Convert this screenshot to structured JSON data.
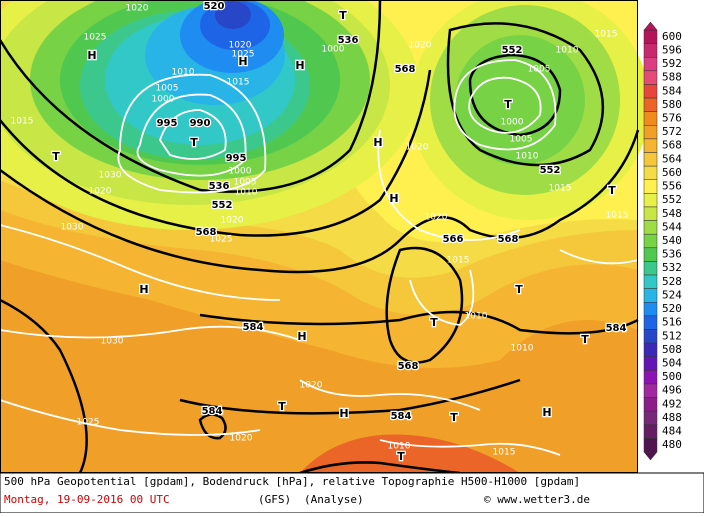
{
  "caption": {
    "line1": "500 hPa Geopotential [gpdam], Bodendruck [hPa], relative Topographie H500-H1000 [gpdam]",
    "date": "Montag, 19-09-2016  00 UTC",
    "model": "(GFS)",
    "run": "(Analyse)",
    "source": "© www.wetter3.de"
  },
  "legend": [
    {
      "value": 600,
      "color": "#b4145a"
    },
    {
      "value": 596,
      "color": "#c8286e"
    },
    {
      "value": 592,
      "color": "#dc3c82"
    },
    {
      "value": 588,
      "color": "#e64b78"
    },
    {
      "value": 584,
      "color": "#e6463c"
    },
    {
      "value": 580,
      "color": "#eb6428"
    },
    {
      "value": 576,
      "color": "#f08c1e"
    },
    {
      "value": 572,
      "color": "#f0a028"
    },
    {
      "value": 568,
      "color": "#f5b432"
    },
    {
      "value": 564,
      "color": "#f5c83c"
    },
    {
      "value": 560,
      "color": "#f5dc46"
    },
    {
      "value": 556,
      "color": "#fff050"
    },
    {
      "value": 552,
      "color": "#e6f046"
    },
    {
      "value": 548,
      "color": "#c8e646"
    },
    {
      "value": 544,
      "color": "#a0dc46"
    },
    {
      "value": 540,
      "color": "#78d246"
    },
    {
      "value": 536,
      "color": "#50c850"
    },
    {
      "value": 532,
      "color": "#3cc88c"
    },
    {
      "value": 528,
      "color": "#32c8c8"
    },
    {
      "value": 524,
      "color": "#28b4e6"
    },
    {
      "value": 520,
      "color": "#1e8cf0"
    },
    {
      "value": 516,
      "color": "#1e64e6"
    },
    {
      "value": 512,
      "color": "#2846c8"
    },
    {
      "value": 508,
      "color": "#3c28b4"
    },
    {
      "value": 504,
      "color": "#6414b4"
    },
    {
      "value": 500,
      "color": "#8c14b4"
    },
    {
      "value": 496,
      "color": "#a028a0"
    },
    {
      "value": 492,
      "color": "#8c1e8c"
    },
    {
      "value": 488,
      "color": "#782878"
    },
    {
      "value": 484,
      "color": "#641e64"
    },
    {
      "value": 480,
      "color": "#501450"
    }
  ],
  "map_labels": [
    "1020",
    "520",
    "T",
    "1025",
    "1020",
    "1025",
    "H",
    "536",
    "1000",
    "H",
    "H",
    "1020",
    "552",
    "1010",
    "1015",
    "568",
    "1010",
    "1015",
    "1005",
    "1000",
    "1005",
    "T",
    "1000",
    "995",
    "990",
    "T",
    "1015",
    "T",
    "H",
    "1020",
    "1005",
    "1010",
    "552",
    "995",
    "1000",
    "1005",
    "1010",
    "536",
    "552",
    "1030",
    "1020",
    "H",
    "1015",
    "T",
    "1015",
    "1020",
    "1020",
    "1030",
    "568",
    "1025",
    "566",
    "568",
    "1015",
    "H",
    "T",
    "584",
    "H",
    "T",
    "1010",
    "584",
    "T",
    "1030",
    "1010",
    "568",
    "1020",
    "584",
    "T",
    "H",
    "584",
    "T",
    "H",
    "1025",
    "1020",
    "1010",
    "T",
    "1015"
  ]
}
